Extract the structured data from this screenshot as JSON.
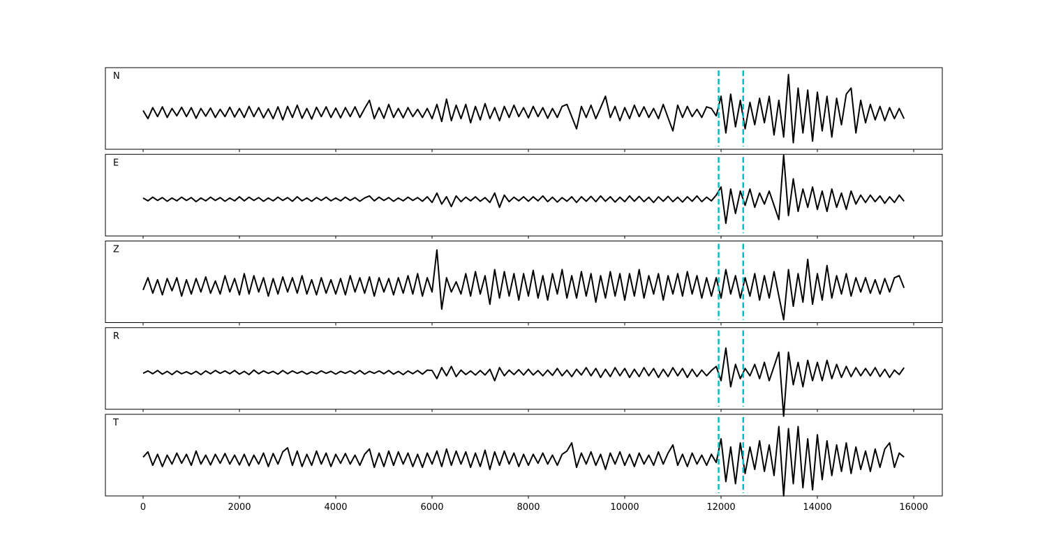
{
  "chart_data": {
    "type": "line",
    "panels": "stacked",
    "color": "#000000",
    "xlim": [
      -783,
      16594
    ],
    "xticks": [
      0,
      2000,
      4000,
      6000,
      8000,
      10000,
      12000,
      14000,
      16000
    ],
    "ylim": [
      -0.9,
      1.1
    ],
    "vlines": {
      "x": [
        11950,
        12460
      ],
      "color": "#00bfbf",
      "style": "dashed"
    },
    "x": [
      0,
      100,
      200,
      300,
      400,
      500,
      600,
      700,
      800,
      900,
      1000,
      1100,
      1200,
      1300,
      1400,
      1500,
      1600,
      1700,
      1800,
      1900,
      2000,
      2100,
      2200,
      2300,
      2400,
      2500,
      2600,
      2700,
      2800,
      2900,
      3000,
      3100,
      3200,
      3300,
      3400,
      3500,
      3600,
      3700,
      3800,
      3900,
      4000,
      4100,
      4200,
      4300,
      4400,
      4500,
      4600,
      4700,
      4800,
      4900,
      5000,
      5100,
      5200,
      5300,
      5400,
      5500,
      5600,
      5700,
      5800,
      5900,
      6000,
      6100,
      6200,
      6300,
      6400,
      6500,
      6600,
      6700,
      6800,
      6900,
      7000,
      7100,
      7200,
      7300,
      7400,
      7500,
      7600,
      7700,
      7800,
      7900,
      8000,
      8100,
      8200,
      8300,
      8400,
      8500,
      8600,
      8700,
      8800,
      8900,
      9000,
      9100,
      9200,
      9300,
      9400,
      9500,
      9600,
      9700,
      9800,
      9900,
      10000,
      10100,
      10200,
      10300,
      10400,
      10500,
      10600,
      10700,
      10800,
      10900,
      11000,
      11100,
      11200,
      11300,
      11400,
      11500,
      11600,
      11700,
      11800,
      11900,
      12000,
      12100,
      12200,
      12300,
      12400,
      12500,
      12600,
      12700,
      12800,
      12900,
      13000,
      13100,
      13200,
      13300,
      13400,
      13500,
      13600,
      13700,
      13800,
      13900,
      14000,
      14100,
      14200,
      14300,
      14400,
      14500,
      14600,
      14700,
      14800,
      14900,
      15000,
      15100,
      15200,
      15300,
      15400,
      15500,
      15600,
      15700,
      15800
    ],
    "series": [
      {
        "name": "N",
        "values": [
          0.05,
          -0.15,
          0.12,
          -0.1,
          0.14,
          -0.12,
          0.1,
          -0.08,
          0.13,
          -0.1,
          0.12,
          -0.14,
          0.1,
          -0.09,
          0.11,
          -0.12,
          0.08,
          -0.1,
          0.13,
          -0.11,
          0.1,
          -0.12,
          0.15,
          -0.1,
          0.12,
          -0.13,
          0.09,
          -0.15,
          0.14,
          -0.18,
          0.15,
          -0.12,
          0.18,
          -0.14,
          0.1,
          -0.16,
          0.13,
          -0.1,
          0.14,
          -0.12,
          0.11,
          -0.13,
          0.12,
          -0.1,
          0.14,
          -0.12,
          0.1,
          0.3,
          -0.15,
          0.12,
          -0.14,
          0.2,
          -0.12,
          0.1,
          -0.13,
          0.12,
          -0.1,
          0.08,
          -0.12,
          0.1,
          -0.15,
          0.2,
          -0.22,
          0.33,
          -0.2,
          0.18,
          -0.15,
          0.2,
          -0.25,
          0.15,
          -0.18,
          0.22,
          -0.15,
          0.12,
          -0.2,
          0.15,
          -0.12,
          0.18,
          -0.1,
          0.12,
          -0.13,
          0.15,
          -0.1,
          0.12,
          -0.14,
          0.1,
          -0.12,
          0.15,
          0.2,
          -0.1,
          -0.4,
          0.15,
          -0.12,
          0.18,
          -0.15,
          0.12,
          0.4,
          -0.12,
          0.15,
          -0.2,
          0.12,
          -0.15,
          0.18,
          -0.1,
          0.14,
          -0.12,
          0.1,
          -0.15,
          0.2,
          -0.13,
          -0.45,
          0.18,
          -0.12,
          0.15,
          -0.1,
          0.08,
          -0.12,
          0.14,
          0.1,
          -0.08,
          0.4,
          -0.5,
          0.45,
          -0.35,
          0.3,
          -0.4,
          0.25,
          -0.3,
          0.35,
          -0.25,
          0.4,
          -0.55,
          0.3,
          -0.6,
          0.93,
          -0.74,
          0.6,
          -0.5,
          0.55,
          -0.7,
          0.5,
          -0.45,
          0.4,
          -0.6,
          0.35,
          -0.3,
          0.45,
          0.6,
          -0.5,
          0.3,
          -0.25,
          0.2,
          -0.18,
          0.15,
          -0.2,
          0.12,
          -0.15,
          0.1,
          -0.15
        ]
      },
      {
        "name": "E",
        "values": [
          0.03,
          -0.04,
          0.05,
          -0.03,
          0.04,
          -0.05,
          0.03,
          -0.04,
          0.05,
          -0.03,
          0.04,
          -0.06,
          0.03,
          -0.04,
          0.05,
          -0.03,
          0.04,
          -0.05,
          0.03,
          -0.04,
          0.06,
          -0.04,
          0.05,
          -0.03,
          0.04,
          -0.05,
          0.03,
          -0.04,
          0.05,
          -0.03,
          0.04,
          -0.05,
          0.06,
          -0.04,
          0.03,
          -0.05,
          0.04,
          -0.03,
          0.05,
          -0.04,
          0.03,
          -0.04,
          0.05,
          -0.03,
          0.04,
          -0.05,
          0.03,
          0.08,
          -0.04,
          0.05,
          -0.03,
          0.04,
          -0.05,
          0.03,
          -0.04,
          0.05,
          -0.03,
          0.04,
          -0.05,
          0.06,
          -0.08,
          0.15,
          -0.12,
          0.06,
          -0.18,
          0.08,
          -0.06,
          0.05,
          -0.04,
          0.06,
          -0.05,
          0.04,
          -0.08,
          0.15,
          -0.2,
          0.1,
          -0.06,
          0.05,
          -0.04,
          0.06,
          -0.05,
          0.06,
          -0.04,
          0.08,
          -0.06,
          0.05,
          -0.07,
          0.04,
          -0.05,
          0.06,
          -0.08,
          0.06,
          -0.05,
          0.07,
          -0.06,
          0.08,
          -0.05,
          0.06,
          -0.07,
          0.05,
          -0.06,
          0.08,
          -0.05,
          0.07,
          -0.06,
          0.05,
          -0.08,
          0.06,
          -0.05,
          0.07,
          -0.06,
          0.05,
          -0.07,
          0.06,
          -0.05,
          0.08,
          -0.06,
          0.05,
          -0.04,
          0.1,
          0.3,
          -0.59,
          0.25,
          -0.35,
          0.2,
          -0.15,
          0.25,
          -0.2,
          0.15,
          -0.12,
          0.2,
          -0.15,
          -0.5,
          1.08,
          -0.4,
          0.5,
          -0.3,
          0.25,
          -0.2,
          0.3,
          -0.25,
          0.2,
          -0.3,
          0.25,
          -0.2,
          0.15,
          -0.25,
          0.2,
          -0.12,
          0.1,
          -0.08,
          0.1,
          -0.06,
          0.08,
          -0.1,
          0.06,
          -0.08,
          0.1,
          -0.05
        ]
      },
      {
        "name": "Z",
        "values": [
          -0.1,
          0.2,
          -0.18,
          0.15,
          -0.22,
          0.18,
          -0.12,
          0.2,
          -0.25,
          0.15,
          -0.2,
          0.18,
          -0.15,
          0.22,
          -0.18,
          0.12,
          -0.2,
          0.25,
          -0.15,
          0.18,
          -0.22,
          0.3,
          -0.2,
          0.25,
          -0.15,
          0.2,
          -0.25,
          0.18,
          -0.2,
          0.22,
          -0.15,
          0.2,
          -0.18,
          0.25,
          -0.2,
          0.15,
          -0.22,
          0.2,
          -0.18,
          0.15,
          -0.2,
          0.18,
          -0.22,
          0.25,
          -0.15,
          0.2,
          -0.18,
          0.22,
          -0.25,
          0.2,
          -0.15,
          0.18,
          -0.22,
          0.2,
          -0.18,
          0.25,
          -0.2,
          0.3,
          -0.25,
          0.2,
          -0.15,
          0.88,
          -0.57,
          0.2,
          -0.15,
          0.1,
          -0.2,
          0.3,
          -0.25,
          0.35,
          -0.2,
          0.25,
          -0.45,
          0.4,
          -0.3,
          0.35,
          -0.25,
          0.3,
          -0.35,
          0.3,
          -0.25,
          0.38,
          -0.3,
          0.25,
          -0.35,
          0.3,
          -0.2,
          0.4,
          -0.3,
          0.25,
          -0.3,
          0.35,
          -0.25,
          0.3,
          -0.4,
          0.25,
          -0.3,
          0.35,
          -0.25,
          0.3,
          -0.35,
          0.3,
          -0.25,
          0.4,
          -0.3,
          0.25,
          -0.2,
          0.3,
          -0.35,
          0.25,
          -0.2,
          0.3,
          -0.25,
          0.35,
          -0.2,
          0.25,
          -0.3,
          0.2,
          -0.25,
          0.2,
          -0.3,
          0.4,
          -0.2,
          0.25,
          -0.3,
          0.2,
          -0.25,
          0.3,
          -0.35,
          0.25,
          -0.3,
          0.35,
          -0.25,
          -0.83,
          0.4,
          -0.5,
          0.3,
          -0.4,
          0.65,
          -0.45,
          0.3,
          -0.35,
          0.5,
          -0.3,
          0.25,
          -0.2,
          0.3,
          -0.25,
          0.2,
          -0.15,
          0.2,
          -0.18,
          0.15,
          -0.2,
          0.18,
          -0.15,
          0.2,
          0.25,
          -0.05
        ]
      },
      {
        "name": "R",
        "values": [
          -0.02,
          0.04,
          -0.03,
          0.05,
          -0.04,
          0.03,
          -0.05,
          0.04,
          -0.03,
          0.02,
          -0.04,
          0.03,
          -0.05,
          0.04,
          -0.03,
          0.05,
          -0.02,
          0.04,
          -0.03,
          0.05,
          -0.04,
          0.03,
          -0.05,
          0.06,
          -0.03,
          0.04,
          -0.02,
          0.03,
          -0.04,
          0.05,
          -0.03,
          0.04,
          -0.02,
          0.03,
          -0.04,
          0.02,
          -0.03,
          0.04,
          -0.02,
          0.03,
          -0.04,
          0.03,
          -0.02,
          0.04,
          -0.03,
          0.05,
          -0.04,
          0.03,
          -0.02,
          0.04,
          -0.03,
          0.05,
          -0.04,
          0.03,
          -0.05,
          0.04,
          -0.03,
          0.05,
          -0.04,
          0.06,
          0.05,
          -0.15,
          0.12,
          -0.08,
          0.15,
          -0.1,
          0.06,
          -0.05,
          0.04,
          -0.06,
          0.05,
          -0.06,
          0.08,
          -0.2,
          0.12,
          -0.08,
          0.06,
          -0.05,
          0.07,
          -0.06,
          0.08,
          -0.06,
          0.05,
          -0.08,
          0.06,
          -0.07,
          0.1,
          -0.08,
          0.06,
          -0.1,
          0.08,
          -0.06,
          0.12,
          -0.08,
          0.1,
          -0.12,
          0.08,
          -0.1,
          0.12,
          -0.08,
          0.1,
          -0.12,
          0.08,
          -0.1,
          0.12,
          -0.08,
          0.1,
          -0.12,
          0.08,
          -0.1,
          0.12,
          -0.08,
          0.1,
          -0.12,
          0.08,
          -0.1,
          0.06,
          -0.08,
          0.05,
          0.15,
          -0.2,
          0.6,
          -0.35,
          0.2,
          -0.15,
          0.1,
          -0.08,
          0.2,
          -0.15,
          0.25,
          -0.2,
          0.15,
          0.5,
          -1.07,
          0.5,
          -0.3,
          0.25,
          -0.35,
          0.3,
          -0.2,
          0.25,
          -0.2,
          0.3,
          -0.15,
          0.2,
          -0.12,
          0.15,
          -0.1,
          0.12,
          -0.08,
          0.1,
          -0.08,
          0.12,
          -0.1,
          0.08,
          -0.12,
          0.06,
          -0.05,
          0.12
        ]
      },
      {
        "name": "T",
        "values": [
          0.05,
          0.18,
          -0.15,
          0.12,
          -0.18,
          0.1,
          -0.12,
          0.15,
          -0.1,
          0.12,
          -0.15,
          0.2,
          -0.12,
          0.1,
          -0.14,
          0.12,
          -0.1,
          0.14,
          -0.12,
          0.1,
          -0.14,
          0.12,
          -0.16,
          0.1,
          -0.12,
          0.15,
          -0.18,
          0.14,
          -0.12,
          0.18,
          0.28,
          -0.15,
          0.2,
          -0.18,
          0.12,
          -0.15,
          0.2,
          -0.12,
          0.15,
          -0.18,
          0.12,
          -0.1,
          0.14,
          -0.12,
          0.1,
          -0.15,
          0.12,
          0.25,
          -0.2,
          0.15,
          -0.18,
          0.2,
          -0.15,
          0.18,
          -0.12,
          0.15,
          -0.18,
          0.12,
          -0.2,
          0.15,
          -0.12,
          0.2,
          -0.18,
          0.25,
          -0.15,
          0.2,
          -0.12,
          0.18,
          -0.2,
          0.15,
          -0.18,
          0.22,
          -0.25,
          0.18,
          -0.15,
          0.2,
          -0.12,
          0.15,
          -0.18,
          0.12,
          -0.15,
          0.12,
          -0.1,
          0.15,
          -0.12,
          0.1,
          -0.15,
          0.12,
          0.2,
          0.4,
          -0.2,
          0.15,
          -0.12,
          0.18,
          -0.15,
          0.12,
          -0.25,
          0.15,
          -0.12,
          0.18,
          -0.15,
          0.12,
          -0.18,
          0.15,
          -0.12,
          0.1,
          -0.15,
          0.18,
          -0.12,
          0.15,
          0.35,
          -0.15,
          0.12,
          -0.18,
          0.15,
          -0.12,
          0.1,
          -0.15,
          0.12,
          -0.08,
          0.5,
          -0.55,
          0.3,
          -0.6,
          0.4,
          -0.35,
          0.3,
          -0.25,
          0.45,
          -0.3,
          0.35,
          -0.4,
          0.8,
          -0.9,
          0.75,
          -0.6,
          0.8,
          -0.7,
          0.5,
          -0.75,
          0.6,
          -0.5,
          0.45,
          -0.4,
          0.35,
          -0.3,
          0.4,
          -0.35,
          0.3,
          -0.25,
          0.2,
          -0.3,
          0.25,
          -0.2,
          0.25,
          0.4,
          -0.2,
          0.15,
          0.05
        ]
      }
    ]
  }
}
